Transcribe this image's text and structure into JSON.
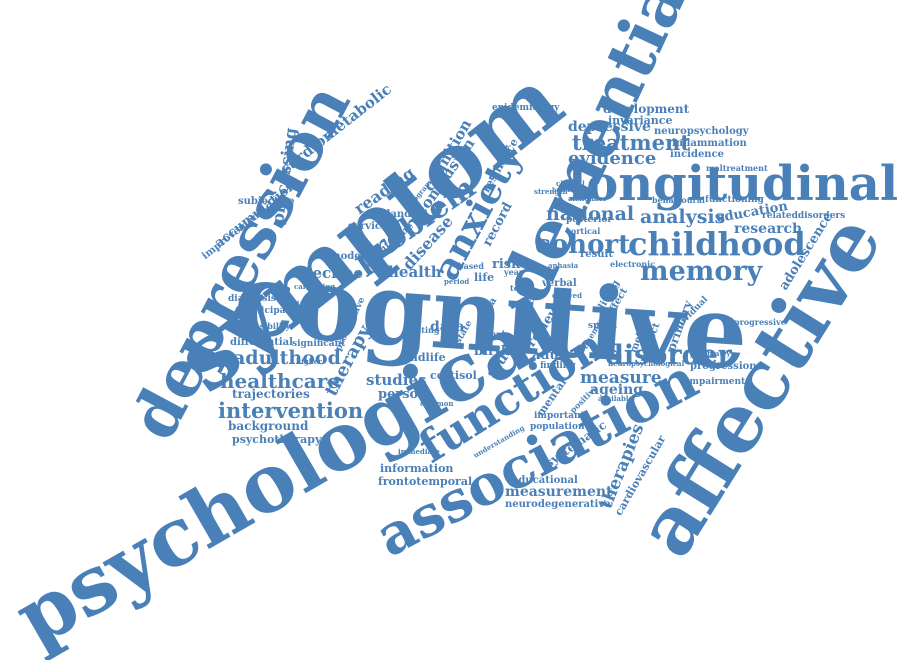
{
  "color": "#4a80b8",
  "words": [
    {
      "text": "cognitive"
    },
    {
      "text": "psychological"
    },
    {
      "text": "affective"
    },
    {
      "text": "symptom"
    },
    {
      "text": "depression"
    },
    {
      "text": "dementia"
    },
    {
      "text": "longitudinal"
    },
    {
      "text": "association"
    },
    {
      "text": "function"
    },
    {
      "text": "anxiety"
    },
    {
      "text": "childhood"
    },
    {
      "text": "memory"
    },
    {
      "text": "disorder"
    },
    {
      "text": "problem"
    },
    {
      "text": "cohort"
    },
    {
      "text": "treatment"
    },
    {
      "text": "intervention"
    },
    {
      "text": "healthcare"
    },
    {
      "text": "adulthood"
    },
    {
      "text": "national"
    },
    {
      "text": "analysis"
    },
    {
      "text": "evidence"
    },
    {
      "text": "depressive"
    },
    {
      "text": "therapies"
    },
    {
      "text": "measurement"
    },
    {
      "text": "processing"
    },
    {
      "text": "cardiometabolic"
    },
    {
      "text": "therapy"
    },
    {
      "text": "cognition"
    },
    {
      "text": "conclusion"
    },
    {
      "text": "reading"
    },
    {
      "text": "disease"
    },
    {
      "text": "health"
    },
    {
      "text": "decline"
    },
    {
      "text": "studies"
    },
    {
      "text": "person"
    },
    {
      "text": "trajectories"
    },
    {
      "text": "background"
    },
    {
      "text": "psychotherapy"
    },
    {
      "text": "accumulation"
    },
    {
      "text": "subjective"
    },
    {
      "text": "improvement"
    },
    {
      "text": "research"
    },
    {
      "text": "education"
    },
    {
      "text": "adolescence"
    },
    {
      "text": "development"
    },
    {
      "text": "invariance"
    },
    {
      "text": "neuropsychology"
    },
    {
      "text": "inflammation"
    },
    {
      "text": "incidence"
    },
    {
      "text": "measure"
    },
    {
      "text": "ageing"
    },
    {
      "text": "systematic"
    },
    {
      "text": "cardiovascular"
    },
    {
      "text": "neurodegenerative"
    },
    {
      "text": "educational"
    },
    {
      "text": "frontotemporal"
    },
    {
      "text": "information"
    },
    {
      "text": "study"
    },
    {
      "text": "record"
    },
    {
      "text": "midlife"
    },
    {
      "text": "birth"
    },
    {
      "text": "adult"
    },
    {
      "text": "data"
    },
    {
      "text": "risk"
    },
    {
      "text": "review"
    },
    {
      "text": "older"
    },
    {
      "text": "verbal"
    },
    {
      "text": "mental"
    },
    {
      "text": "cortisol"
    },
    {
      "text": "primary"
    },
    {
      "text": "method"
    },
    {
      "text": "neglect"
    },
    {
      "text": "progression"
    },
    {
      "text": "impairment"
    },
    {
      "text": "england"
    },
    {
      "text": "service"
    },
    {
      "text": "outcome"
    },
    {
      "text": "model"
    },
    {
      "text": "diagnosis"
    },
    {
      "text": "participant"
    },
    {
      "text": "differential"
    },
    {
      "text": "significant"
    },
    {
      "text": "feasibility"
    },
    {
      "text": "resilience"
    },
    {
      "text": "epidemiology"
    },
    {
      "text": "functioning"
    },
    {
      "text": "maltreatment"
    },
    {
      "text": "relateddisorders"
    },
    {
      "text": "behavioural"
    },
    {
      "text": "progressive"
    },
    {
      "text": "important"
    },
    {
      "text": "population"
    },
    {
      "text": "posterior"
    },
    {
      "text": "cortical"
    },
    {
      "text": "result"
    },
    {
      "text": "living"
    },
    {
      "text": "speed"
    },
    {
      "text": "life"
    },
    {
      "text": "caregiving"
    },
    {
      "text": "testing"
    },
    {
      "text": "meta"
    },
    {
      "text": "state"
    },
    {
      "text": "finding"
    },
    {
      "text": "effect"
    },
    {
      "text": "immediate"
    },
    {
      "text": "positive"
    },
    {
      "text": "understanding"
    },
    {
      "text": "prospective"
    },
    {
      "text": "individual"
    },
    {
      "text": "electronic"
    },
    {
      "text": "alzheimer"
    },
    {
      "text": "programme"
    },
    {
      "text": "year"
    },
    {
      "text": "sample"
    },
    {
      "text": "based"
    },
    {
      "text": "test"
    },
    {
      "text": "fluency"
    },
    {
      "text": "reliable"
    },
    {
      "text": "period"
    },
    {
      "text": "clinical"
    },
    {
      "text": "available"
    },
    {
      "text": "psychiatry"
    },
    {
      "text": "neuropsychological"
    },
    {
      "text": "aphasia"
    },
    {
      "text": "delayed"
    },
    {
      "text": "higher"
    },
    {
      "text": "common"
    },
    {
      "text": "strength"
    },
    {
      "text": "brain"
    },
    {
      "text": "retrospective"
    },
    {
      "text": "management"
    }
  ]
}
